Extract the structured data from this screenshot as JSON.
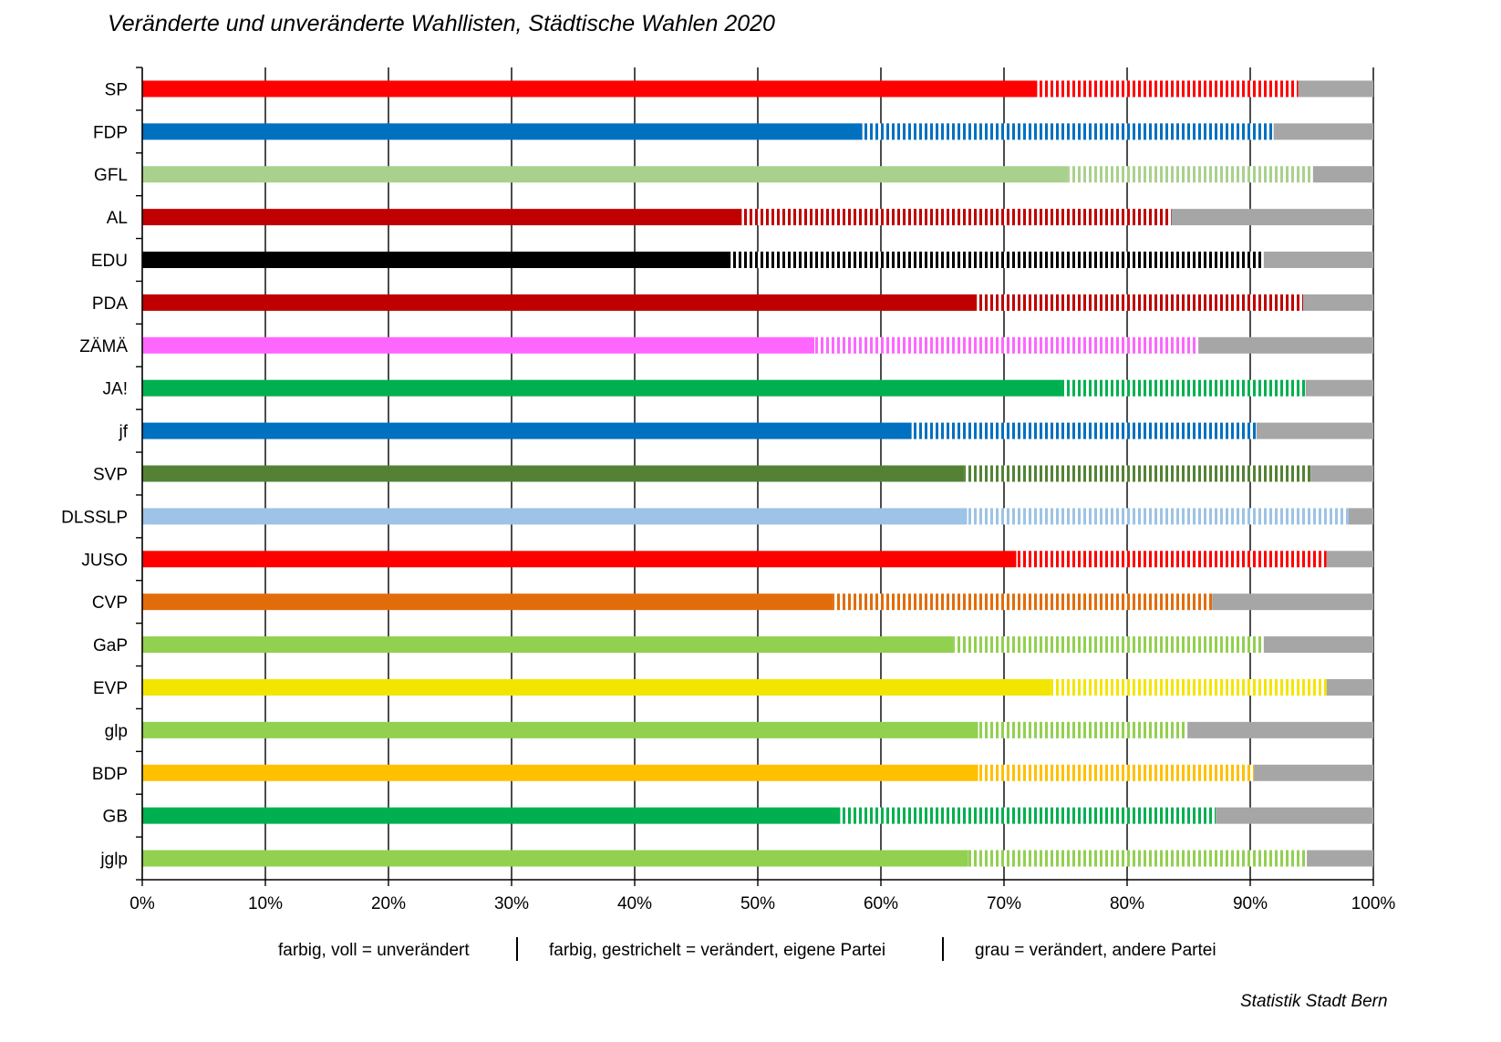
{
  "chart_data": {
    "type": "bar",
    "orientation": "horizontal",
    "stacked": true,
    "title": "Veränderte und unveränderte Wahllisten, Städtische Wahlen 2020",
    "xlabel": "",
    "ylabel": "",
    "xlim": [
      0,
      100
    ],
    "x_ticks": [
      "0%",
      "10%",
      "20%",
      "30%",
      "40%",
      "50%",
      "60%",
      "70%",
      "80%",
      "90%",
      "100%"
    ],
    "grid": "vertical",
    "categories": [
      "SP",
      "FDP",
      "GFL",
      "AL",
      "EDU",
      "PDA",
      "ZÄMÄ",
      "JA!",
      "jf",
      "SVP",
      "DLSSLP",
      "JUSO",
      "CVP",
      "GaP",
      "EVP",
      "glp",
      "BDP",
      "GB",
      "jglp"
    ],
    "colors": [
      "#ff0000",
      "#0070c0",
      "#a9d18e",
      "#c00000",
      "#000000",
      "#c00000",
      "#ff66ff",
      "#00b050",
      "#0070c0",
      "#548235",
      "#9dc3e6",
      "#ff0000",
      "#e36c0a",
      "#92d050",
      "#f2e600",
      "#92d050",
      "#ffc000",
      "#00b050",
      "#92d050"
    ],
    "series": [
      {
        "values": [
          72.7,
          58.5,
          75.2,
          48.7,
          47.8,
          67.8,
          54.6,
          74.7,
          62.5,
          66.8,
          67.0,
          71.0,
          56.1,
          65.9,
          73.8,
          67.9,
          67.9,
          56.7,
          67.1
        ]
      },
      {
        "values": [
          21.2,
          33.4,
          19.9,
          34.9,
          43.3,
          26.5,
          31.2,
          19.8,
          28.0,
          28.1,
          31.0,
          25.2,
          30.8,
          25.2,
          22.4,
          17.0,
          22.4,
          30.5,
          27.5
        ]
      },
      {
        "values": [
          6.1,
          8.1,
          4.9,
          16.4,
          8.9,
          5.7,
          14.2,
          5.5,
          9.5,
          5.1,
          2.0,
          3.8,
          13.1,
          8.9,
          3.8,
          15.1,
          9.7,
          12.8,
          5.4
        ]
      }
    ],
    "other_party_color": "#a6a6a6"
  },
  "legend": {
    "unchanged": "farbig, voll = unverändert",
    "changed_own": "farbig, gestrichelt = verändert, eigene Partei",
    "changed_other": "grau = verändert, andere Partei",
    "separator": "|"
  },
  "source": "Statistik Stadt Bern"
}
